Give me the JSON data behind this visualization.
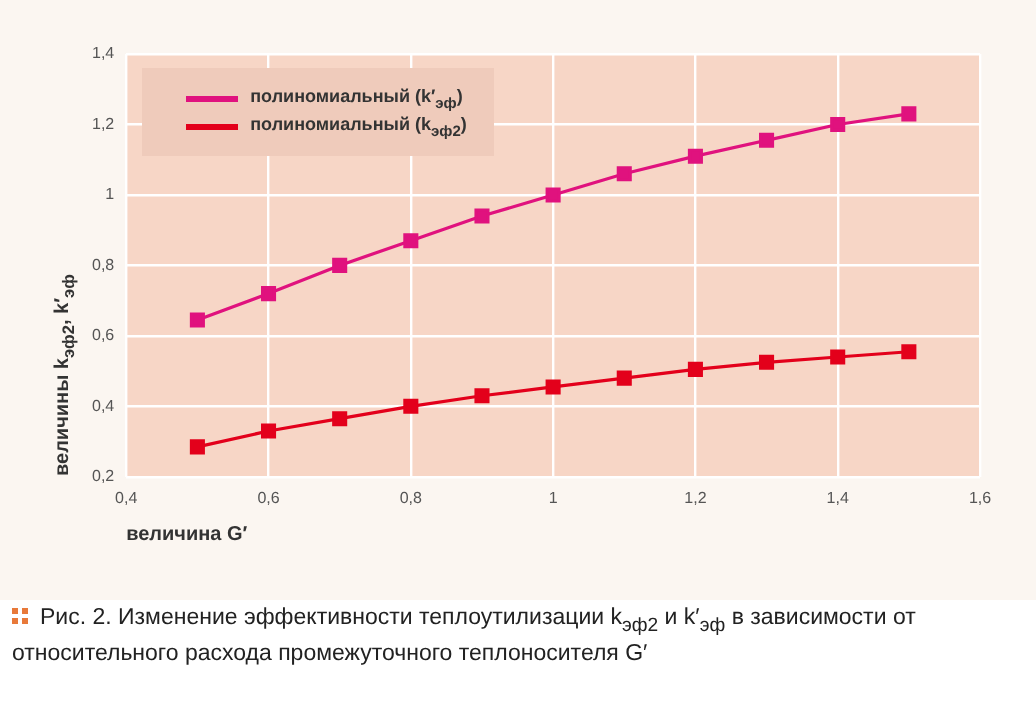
{
  "chart_data": {
    "type": "line",
    "xlabel": "величина G′",
    "ylabel": "величины k$_{эф2}$, k′$_{эф}$",
    "x": [
      0.5,
      0.6,
      0.7,
      0.8,
      0.9,
      1.0,
      1.1,
      1.2,
      1.3,
      1.4,
      1.5
    ],
    "series": [
      {
        "name": "полиномиальный (k′$_{эф}$)",
        "color": "#e0127e",
        "values": [
          0.645,
          0.72,
          0.8,
          0.87,
          0.94,
          1.0,
          1.06,
          1.11,
          1.155,
          1.2,
          1.23
        ]
      },
      {
        "name": "полиномиальный (k$_{эф2}$)",
        "color": "#e3001b",
        "values": [
          0.285,
          0.33,
          0.365,
          0.4,
          0.43,
          0.455,
          0.48,
          0.505,
          0.525,
          0.54,
          0.555
        ]
      }
    ],
    "xlim": [
      0.4,
      1.6
    ],
    "xticks": [
      {
        "value": 0.4,
        "label": "0,4"
      },
      {
        "value": 0.6,
        "label": "0,6"
      },
      {
        "value": 0.8,
        "label": "0,8"
      },
      1,
      {
        "value": 1.2,
        "label": "1,2"
      },
      {
        "value": 1.4,
        "label": "1,4"
      },
      {
        "value": 1.6,
        "label": "1,6"
      }
    ],
    "ylim": [
      0.2,
      1.4
    ],
    "yticks": [
      {
        "value": 0.2,
        "label": "0,2"
      },
      {
        "value": 0.4,
        "label": "0,4"
      },
      {
        "value": 0.6,
        "label": "0,6"
      },
      {
        "value": 0.8,
        "label": "0,8"
      },
      1,
      {
        "value": 1.2,
        "label": "1,2"
      },
      {
        "value": 1.4,
        "label": "1,4"
      }
    ],
    "grid": true,
    "legend": "top left",
    "marker": "square",
    "line_style": "solid",
    "annotations": [
      "Рис. 2. Изменение эффективности теплоутилизации k$_{эф2}$ и k′$_{эф}$ в зависимости от относительного расхода промежуточного теплоносителя G′"
    ]
  }
}
